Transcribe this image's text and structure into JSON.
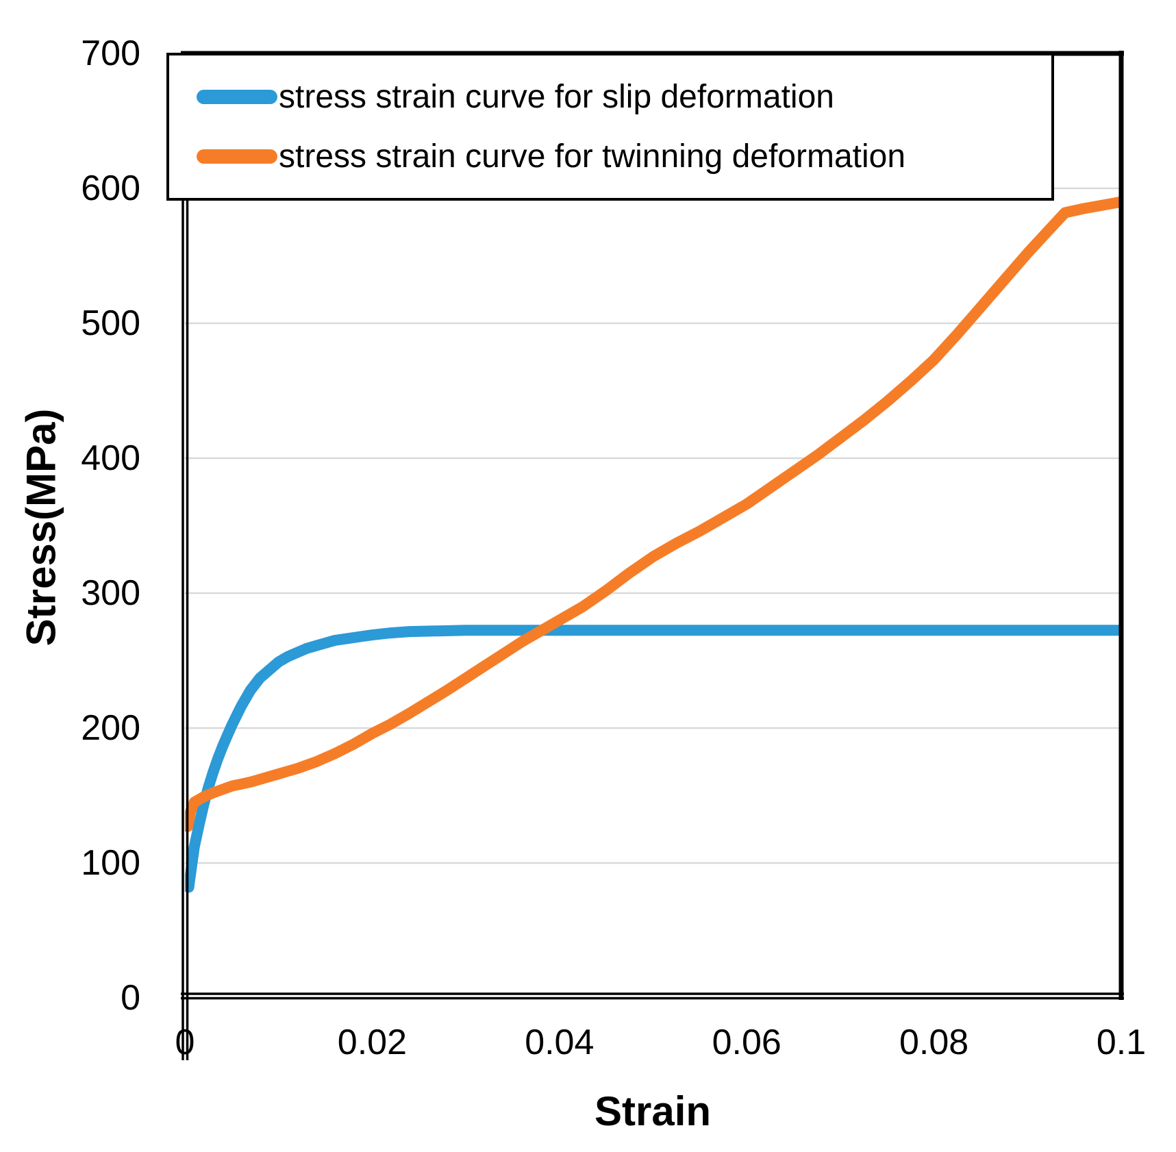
{
  "chart_data": {
    "type": "line",
    "title": "",
    "xlabel": "Strain",
    "ylabel": "Stress(MPa)",
    "xlim": [
      0,
      0.1
    ],
    "ylim": [
      0,
      700
    ],
    "grid": "horizontal-only",
    "legend_position": "top-left-inside",
    "colors": {
      "slip_blue": "#2B9AD6",
      "twinning_orange": "#F67D28",
      "gridline": "#D9D9D9",
      "axis": "#000000",
      "background": "#FFFFFF"
    },
    "x_ticks": [
      {
        "value": 0,
        "label": "0"
      },
      {
        "value": 0.02,
        "label": "0.02"
      },
      {
        "value": 0.04,
        "label": "0.04"
      },
      {
        "value": 0.06,
        "label": "0.06"
      },
      {
        "value": 0.08,
        "label": "0.08"
      },
      {
        "value": 0.1,
        "label": "0.1"
      }
    ],
    "y_ticks": [
      {
        "value": 0,
        "label": "0"
      },
      {
        "value": 100,
        "label": "100"
      },
      {
        "value": 200,
        "label": "200"
      },
      {
        "value": 300,
        "label": "300"
      },
      {
        "value": 400,
        "label": "400"
      },
      {
        "value": 500,
        "label": "500"
      },
      {
        "value": 600,
        "label": "600"
      },
      {
        "value": 700,
        "label": "700"
      }
    ],
    "y_gridline_values": [
      100,
      200,
      300,
      400,
      500,
      600
    ],
    "series": [
      {
        "id": "slip",
        "name": "stress strain curve for slip deformation",
        "color": "#2B9AD6",
        "points": [
          [
            0.0004,
            82
          ],
          [
            0.0007,
            97
          ],
          [
            0.001,
            112
          ],
          [
            0.0015,
            128
          ],
          [
            0.002,
            143
          ],
          [
            0.0025,
            156
          ],
          [
            0.003,
            167
          ],
          [
            0.0035,
            177
          ],
          [
            0.004,
            186
          ],
          [
            0.0045,
            194
          ],
          [
            0.005,
            202
          ],
          [
            0.0055,
            209
          ],
          [
            0.006,
            216
          ],
          [
            0.007,
            228
          ],
          [
            0.008,
            237
          ],
          [
            0.009,
            243
          ],
          [
            0.01,
            249
          ],
          [
            0.011,
            253
          ],
          [
            0.012,
            256
          ],
          [
            0.013,
            259
          ],
          [
            0.014,
            261
          ],
          [
            0.015,
            263
          ],
          [
            0.016,
            265
          ],
          [
            0.017,
            266
          ],
          [
            0.018,
            267
          ],
          [
            0.019,
            268
          ],
          [
            0.02,
            269
          ],
          [
            0.022,
            270.5
          ],
          [
            0.024,
            271.5
          ],
          [
            0.027,
            272
          ],
          [
            0.03,
            272.5
          ],
          [
            0.04,
            272.5
          ],
          [
            0.06,
            272.5
          ],
          [
            0.08,
            272.5
          ],
          [
            0.1,
            272.5
          ]
        ]
      },
      {
        "id": "twinning",
        "name": "stress strain curve for twinning deformation",
        "color": "#F67D28",
        "points": [
          [
            0.0003,
            127
          ],
          [
            0.0006,
            138
          ],
          [
            0.001,
            145
          ],
          [
            0.002,
            149
          ],
          [
            0.003,
            152
          ],
          [
            0.004,
            154.5
          ],
          [
            0.005,
            157
          ],
          [
            0.006,
            158.5
          ],
          [
            0.007,
            160
          ],
          [
            0.008,
            162
          ],
          [
            0.009,
            164
          ],
          [
            0.01,
            166
          ],
          [
            0.011,
            168
          ],
          [
            0.012,
            170
          ],
          [
            0.013,
            172.5
          ],
          [
            0.014,
            175
          ],
          [
            0.015,
            178
          ],
          [
            0.016,
            181
          ],
          [
            0.017,
            184.5
          ],
          [
            0.018,
            188
          ],
          [
            0.019,
            192
          ],
          [
            0.02,
            196
          ],
          [
            0.022,
            203
          ],
          [
            0.024,
            211
          ],
          [
            0.026,
            219.5
          ],
          [
            0.028,
            228
          ],
          [
            0.03,
            237
          ],
          [
            0.032,
            246
          ],
          [
            0.034,
            255
          ],
          [
            0.036,
            264
          ],
          [
            0.038,
            272
          ],
          [
            0.04,
            280
          ],
          [
            0.0425,
            290
          ],
          [
            0.045,
            302
          ],
          [
            0.0475,
            315
          ],
          [
            0.05,
            327
          ],
          [
            0.0525,
            337
          ],
          [
            0.055,
            346
          ],
          [
            0.0575,
            356
          ],
          [
            0.06,
            366
          ],
          [
            0.0625,
            378
          ],
          [
            0.065,
            390
          ],
          [
            0.0675,
            402
          ],
          [
            0.07,
            415
          ],
          [
            0.0725,
            428
          ],
          [
            0.075,
            442
          ],
          [
            0.0775,
            457
          ],
          [
            0.08,
            473
          ],
          [
            0.0825,
            492
          ],
          [
            0.085,
            512
          ],
          [
            0.0875,
            532
          ],
          [
            0.09,
            552
          ],
          [
            0.092,
            567
          ],
          [
            0.094,
            582
          ],
          [
            0.096,
            585
          ],
          [
            0.1,
            590
          ]
        ]
      }
    ]
  }
}
